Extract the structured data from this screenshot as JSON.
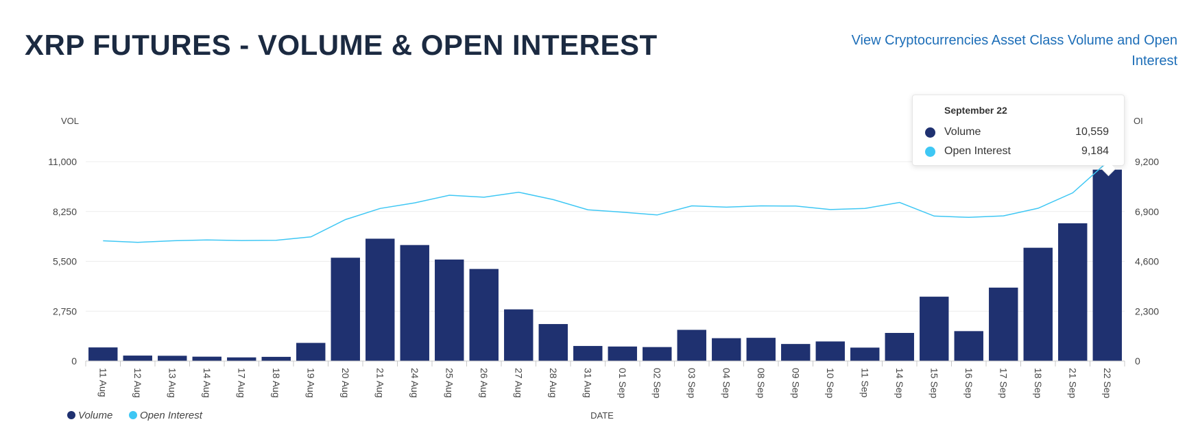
{
  "header": {
    "title": "XRP FUTURES - VOLUME & OPEN INTEREST",
    "link_text": "View Cryptocurrencies Asset Class Volume and Open Interest"
  },
  "tooltip": {
    "date": "September 22",
    "rows": [
      {
        "label": "Volume",
        "value": "10,559",
        "color": "#1f3170"
      },
      {
        "label": "Open Interest",
        "value": "9,184",
        "color": "#3ec7f4"
      }
    ]
  },
  "chart_data": {
    "type": "bar",
    "xlabel": "DATE",
    "ylabel": "VOL",
    "y2label": "OI",
    "categories": [
      "11 Aug",
      "12 Aug",
      "13 Aug",
      "14 Aug",
      "17 Aug",
      "18 Aug",
      "19 Aug",
      "20 Aug",
      "21 Aug",
      "24 Aug",
      "25 Aug",
      "26 Aug",
      "27 Aug",
      "28 Aug",
      "31 Aug",
      "01 Sep",
      "02 Sep",
      "03 Sep",
      "04 Sep",
      "08 Sep",
      "09 Sep",
      "10 Sep",
      "11 Sep",
      "14 Sep",
      "15 Sep",
      "16 Sep",
      "17 Sep",
      "18 Sep",
      "21 Sep",
      "22 Sep"
    ],
    "series": [
      {
        "name": "Volume",
        "type": "bar",
        "axis": "left",
        "color": "#1f3170",
        "values": [
          750,
          300,
          290,
          240,
          200,
          230,
          1000,
          5700,
          6750,
          6400,
          5600,
          5080,
          2850,
          2040,
          830,
          800,
          770,
          1720,
          1260,
          1280,
          940,
          1080,
          740,
          1550,
          3550,
          1650,
          4050,
          6250,
          7600,
          10559
        ]
      },
      {
        "name": "Open Interest",
        "type": "line",
        "axis": "right",
        "color": "#3ec7f4",
        "values": [
          5550,
          5480,
          5550,
          5590,
          5560,
          5570,
          5730,
          6530,
          7040,
          7300,
          7650,
          7560,
          7790,
          7450,
          6980,
          6870,
          6740,
          7160,
          7100,
          7160,
          7150,
          6990,
          7040,
          7320,
          6690,
          6630,
          6700,
          7050,
          7760,
          9184
        ]
      }
    ],
    "y_left": {
      "min": 0,
      "max": 11000,
      "ticks": [
        0,
        2750,
        5500,
        8250,
        11000
      ],
      "tick_labels": [
        "0",
        "2,750",
        "5,500",
        "8,250",
        "11,000"
      ]
    },
    "y_right": {
      "min": 0,
      "max": 9200,
      "ticks": [
        0,
        2300,
        4600,
        6900,
        9200
      ],
      "tick_labels": [
        "0",
        "2,300",
        "4,600",
        "6,900",
        "9,200"
      ]
    },
    "grid": true,
    "legend": {
      "position": "bottom-left",
      "items": [
        {
          "label": "Volume",
          "color": "#1f3170"
        },
        {
          "label": "Open Interest",
          "color": "#3ec7f4"
        }
      ]
    }
  }
}
